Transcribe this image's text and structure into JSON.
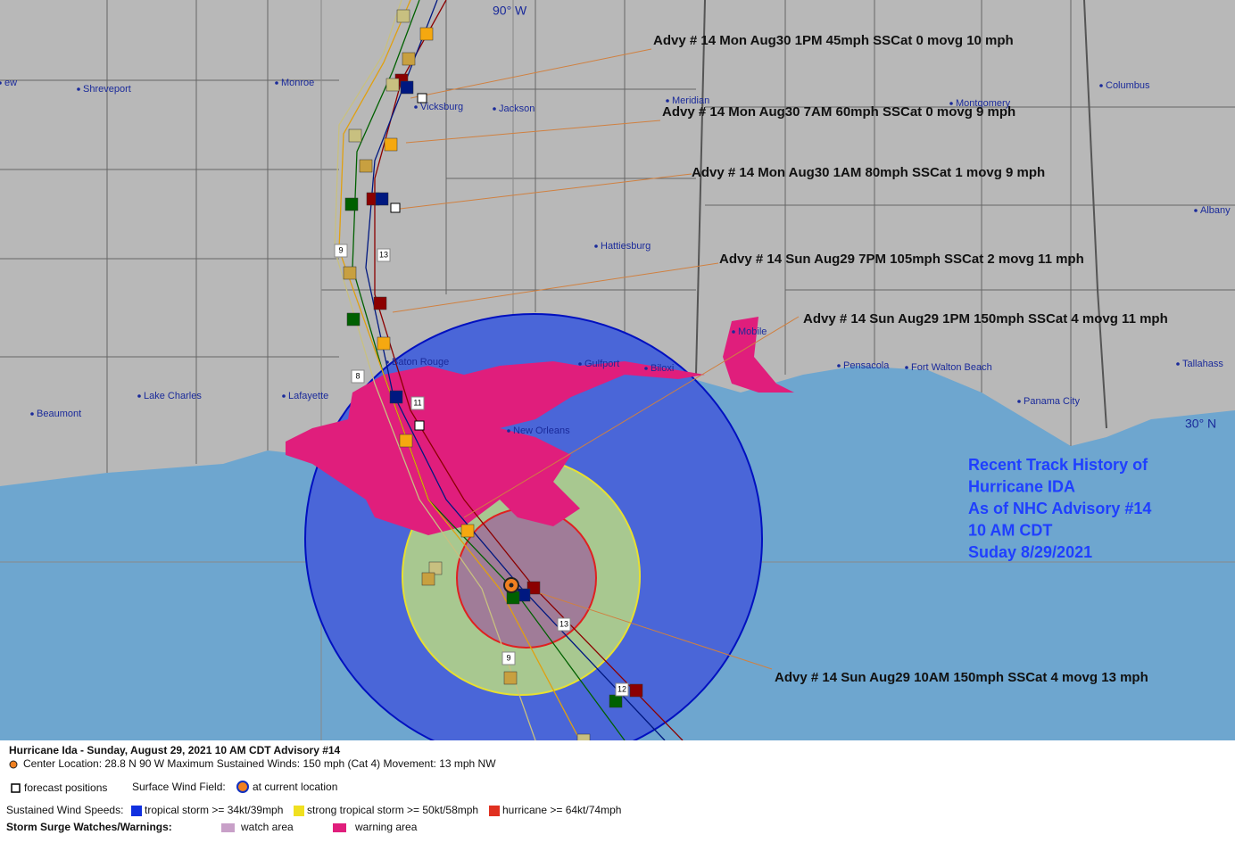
{
  "map": {
    "longitude_label": "90° W",
    "latitude_label": "30° N",
    "cities": [
      "Shreveport",
      "Monroe",
      "Vicksburg",
      "Jackson",
      "Meridian",
      "Montgomery",
      "Columbus",
      "Albany",
      "Hattiesburg",
      "Mobile",
      "Pensacola",
      "Fort Walton Beach",
      "Tallahass",
      "Panama City",
      "Gulfport",
      "Biloxi",
      "Baton Rouge",
      "New Orleans",
      "Lake Charles",
      "Lafayette",
      "Beaumont",
      "ew"
    ],
    "advisories": [
      "Advy # 14 Mon Aug30 1PM  45mph SSCat 0 movg 10 mph",
      "Advy # 14 Mon Aug30 7AM  60mph SSCat 0 movg 9 mph",
      "Advy # 14 Mon Aug30 1AM  80mph SSCat 1 movg 9 mph",
      "Advy # 14 Sun Aug29 7PM  105mph SSCat 2 movg 11 mph",
      "Advy # 14 Sun Aug29 1PM  150mph SSCat 4 movg 11 mph",
      "Advy # 14 Sun Aug29 10AM  150mph SSCat 4 movg 13 mph"
    ],
    "info": [
      "Recent Track History of",
      "Hurricane IDA",
      "As of NHC Advisory #14",
      "10 AM CDT",
      "Suday 8/29/2021"
    ],
    "track_labels": [
      "13",
      "9",
      "12",
      "13",
      "11",
      "9",
      "8"
    ]
  },
  "footer": {
    "title": "Hurricane Ida  -  Sunday, August 29, 2021  10 AM CDT   Advisory #14",
    "center": "Center Location: 28.8 N  90 W   Maximum Sustained Winds: 150 mph (Cat 4) Movement: 13 mph NW",
    "forecast_positions": "forecast positions",
    "surface_wind_field": "Surface Wind Field:",
    "at_current_location": "at current location",
    "sustained_label": "Sustained Wind Speeds:",
    "tropical_storm": "tropical storm >= 34kt/39mph",
    "strong_tropical_storm": "strong tropical storm >= 50kt/58mph",
    "hurricane": "hurricane >= 64kt/74mph",
    "surge_label": "Storm Surge Watches/Warnings:",
    "watch": "watch area",
    "warning": "warning area"
  }
}
